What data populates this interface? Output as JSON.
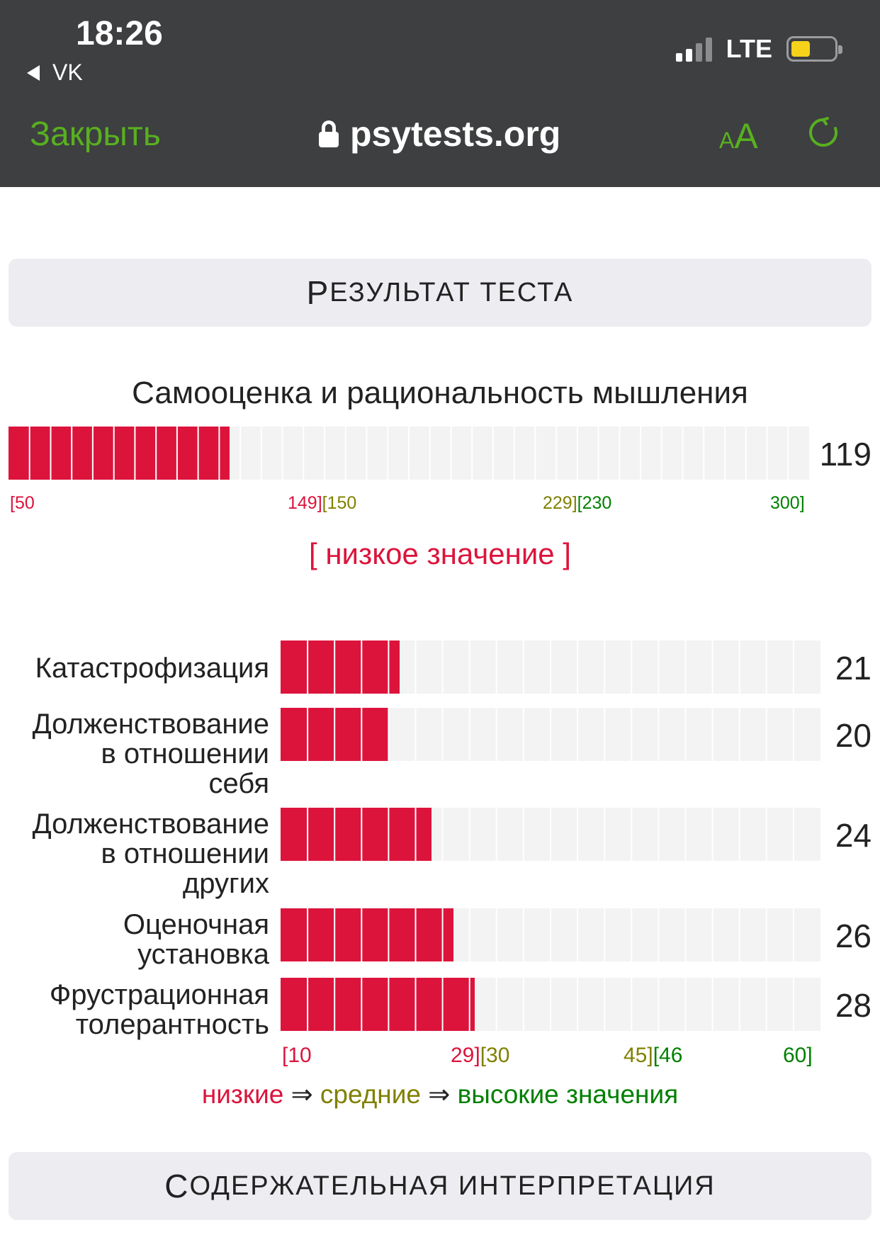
{
  "status_bar": {
    "time": "18:26",
    "back_app": "VK",
    "network": "LTE"
  },
  "browser": {
    "close_label": "Закрыть",
    "url": "psytests.org",
    "text_size_small": "A",
    "text_size_large": "A"
  },
  "result_header": {
    "first_letter": "Р",
    "rest": "ЕЗУЛЬТАТ ТЕСТА"
  },
  "main_scale": {
    "title": "Самооценка и рациональность мышления",
    "value": "119",
    "min": 50,
    "max": 300,
    "score": 119,
    "segments": 38,
    "ticks": {
      "t1": "[50",
      "t2_low": "149]",
      "t2_mid": "[150",
      "t3_mid": "229]",
      "t3_high": "[230",
      "t4": "300]"
    },
    "verdict": "[ низкое значение ]"
  },
  "sub_scales": {
    "min": 10,
    "max": 60,
    "segments": 20,
    "items": [
      {
        "label_lines": [
          "Катастрофизация"
        ],
        "value": "21",
        "score": 21
      },
      {
        "label_lines": [
          "Долженствование",
          "в отношении",
          "себя"
        ],
        "value": "20",
        "score": 20
      },
      {
        "label_lines": [
          "Долженствование",
          "в отношении",
          "других"
        ],
        "value": "24",
        "score": 24
      },
      {
        "label_lines": [
          "Оценочная",
          "установка"
        ],
        "value": "26",
        "score": 26
      },
      {
        "label_lines": [
          "Фрустрационная",
          "толерантность"
        ],
        "value": "28",
        "score": 28
      }
    ],
    "ticks": {
      "t1": "[10",
      "t2_low": "29]",
      "t2_mid": "[30",
      "t3_mid": "45]",
      "t3_high": "[46",
      "t4": "60]"
    }
  },
  "legend": {
    "low": "низкие",
    "arrow1": " ⇒ ",
    "mid": "средние",
    "arrow2": " ⇒ ",
    "high": "высокие значения"
  },
  "interpretation_header": {
    "first_letter": "С",
    "rest": "ОДЕРЖАТЕЛЬНАЯ ИНТЕРПРЕТАЦИЯ"
  },
  "colors": {
    "low": "#dc143c",
    "mid": "#808000",
    "high": "#008000",
    "track": "#f3f3f3",
    "accent": "#58b01f"
  }
}
